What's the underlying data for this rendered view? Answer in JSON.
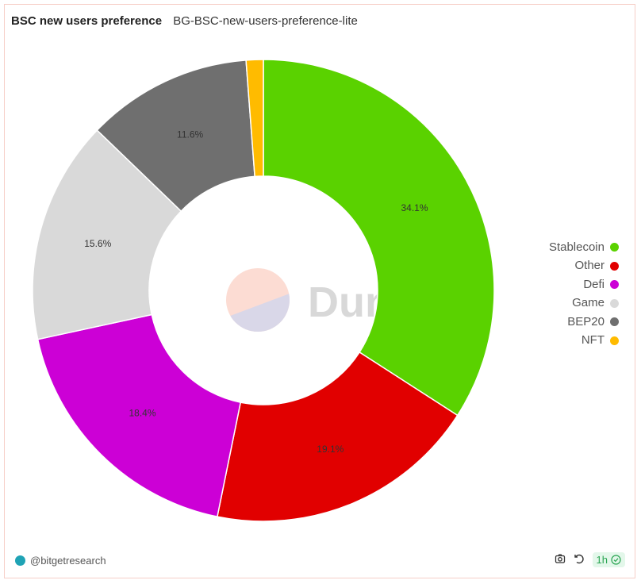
{
  "header": {
    "title": "BSC new users preference",
    "query_name": "BG-BSC-new-users-preference-lite"
  },
  "chart_data": {
    "type": "pie",
    "donut": true,
    "categories": [
      "Stablecoin",
      "Other",
      "Defi",
      "Game",
      "BEP20",
      "NFT"
    ],
    "values": [
      34.1,
      19.1,
      18.4,
      15.6,
      11.6,
      1.2
    ],
    "data_labels": [
      "34.1%",
      "19.1%",
      "18.4%",
      "15.6%",
      "11.6%",
      ""
    ],
    "colors": [
      "#5ad200",
      "#e10000",
      "#cc00d6",
      "#d9d9d9",
      "#6f6f6f",
      "#ffbb00"
    ],
    "legend_position": "right",
    "watermark": "Dune"
  },
  "footer": {
    "author": "@bitgetresearch",
    "refresh_badge": "1h",
    "icons": [
      "camera-icon",
      "refresh-icon",
      "check-circle-icon"
    ]
  }
}
